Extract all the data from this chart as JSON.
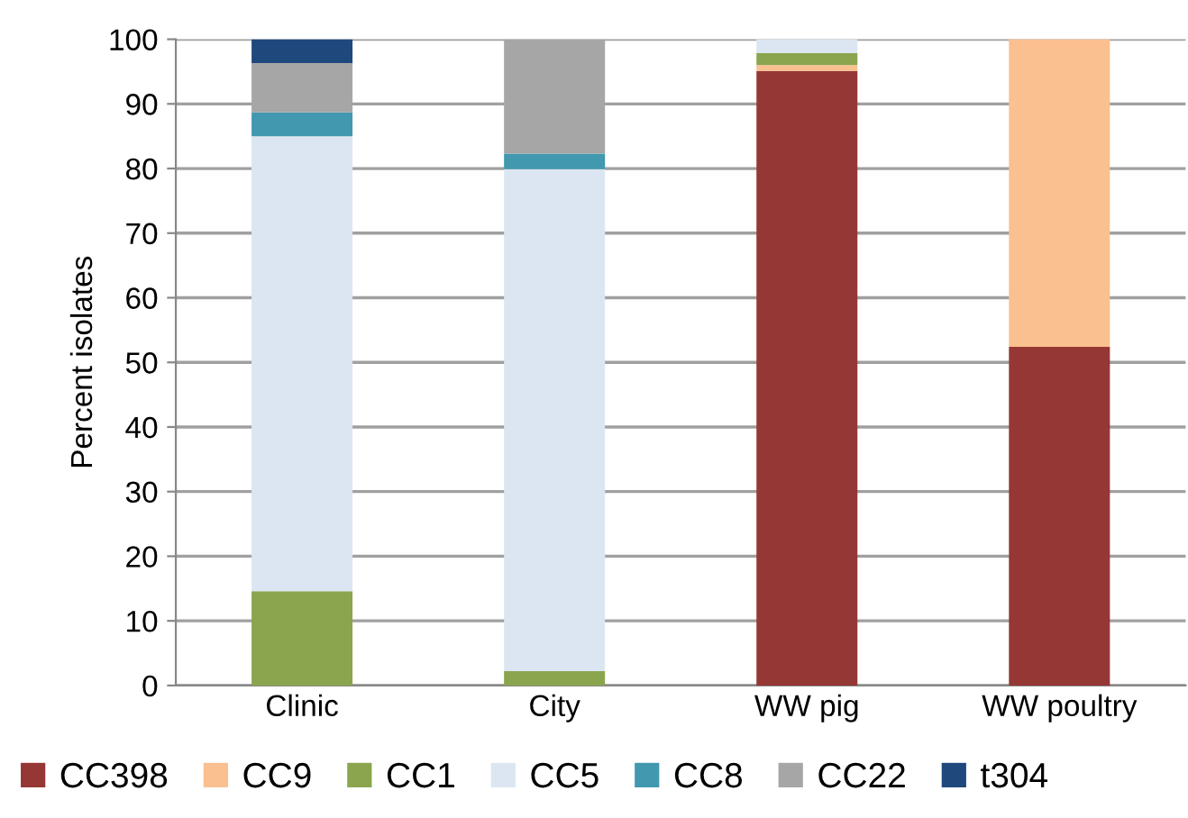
{
  "chart_data": {
    "type": "bar",
    "stacked": true,
    "ylabel": "Percent isolates",
    "categories": [
      "Clinic",
      "City",
      "WW pig",
      "WW poultry"
    ],
    "series": [
      {
        "name": "CC398",
        "color": "#953735",
        "values": [
          null,
          null,
          95.1,
          52.4
        ]
      },
      {
        "name": "CC9",
        "color": "#fac090",
        "values": [
          null,
          null,
          0.9,
          47.6
        ]
      },
      {
        "name": "CC1",
        "color": "#8ba54e",
        "values": [
          14.6,
          2.2,
          1.9,
          null
        ]
      },
      {
        "name": "CC5",
        "color": "#dce6f2",
        "values": [
          70.4,
          77.7,
          2.1,
          null
        ]
      },
      {
        "name": "CC8",
        "color": "#4198af",
        "values": [
          3.7,
          2.4,
          null,
          null
        ]
      },
      {
        "name": "CC22",
        "color": "#a6a6a6",
        "values": [
          7.6,
          17.7,
          null,
          null
        ]
      },
      {
        "name": "t304",
        "color": "#1f497d",
        "values": [
          3.7,
          null,
          null,
          null
        ]
      }
    ],
    "ylim": [
      0,
      100
    ],
    "yticks": [
      0,
      10,
      20,
      30,
      40,
      50,
      60,
      70,
      80,
      90,
      100
    ],
    "grid": "y",
    "legend": "bottom"
  }
}
